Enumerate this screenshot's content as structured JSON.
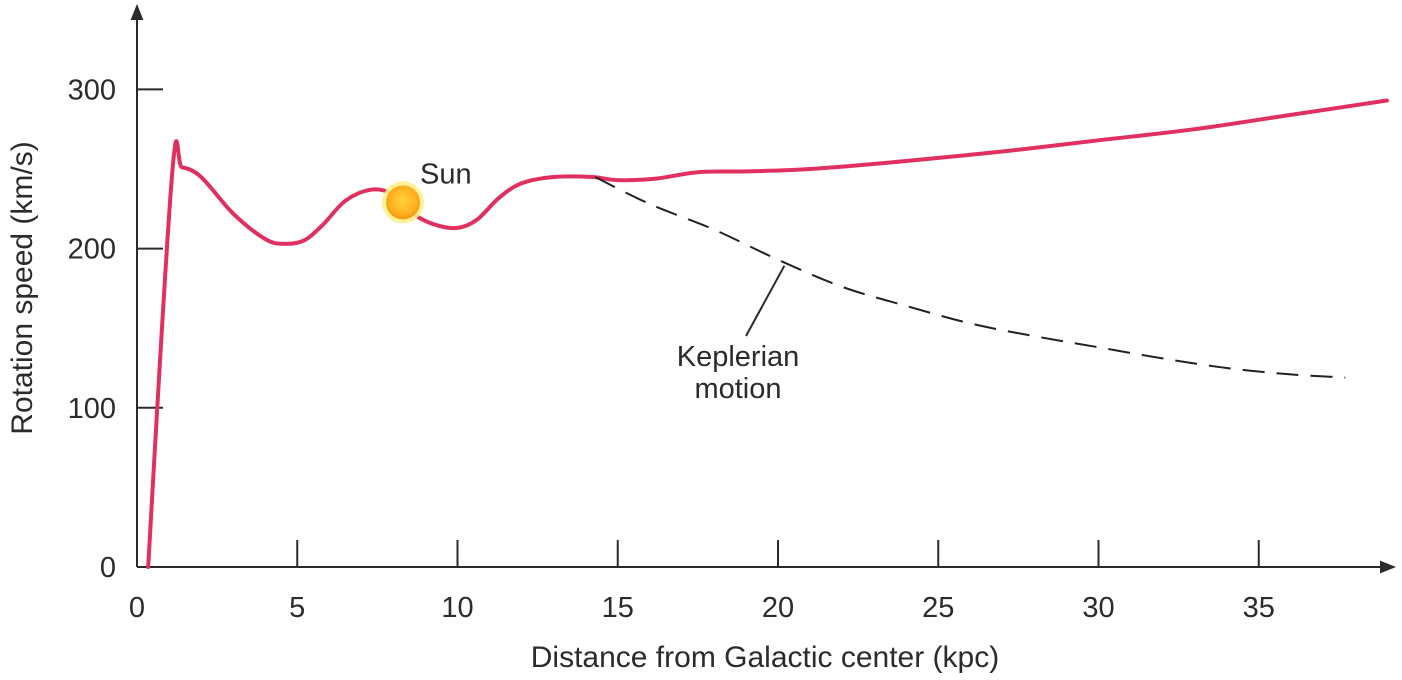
{
  "chart_data": {
    "type": "line",
    "xlabel": "Distance from Galactic center (kpc)",
    "ylabel": "Rotation speed (km/s)",
    "xlim": [
      0,
      39
    ],
    "ylim": [
      0,
      340
    ],
    "x_ticks": [
      0,
      5,
      10,
      15,
      20,
      25,
      30,
      35
    ],
    "y_ticks": [
      0,
      100,
      200,
      300
    ],
    "grid": false,
    "series": [
      {
        "style": "solid",
        "color": "#e03060",
        "points": [
          [
            0.35,
            0
          ],
          [
            1.1,
            248
          ],
          [
            1.4,
            251
          ],
          [
            2.0,
            245
          ],
          [
            3.0,
            222
          ],
          [
            4.0,
            206
          ],
          [
            4.6,
            203
          ],
          [
            5.2,
            205
          ],
          [
            5.8,
            215
          ],
          [
            6.5,
            230
          ],
          [
            7.3,
            237
          ],
          [
            8.0,
            234
          ],
          [
            8.6,
            222
          ],
          [
            9.3,
            215
          ],
          [
            10.0,
            213
          ],
          [
            10.6,
            218
          ],
          [
            11.3,
            232
          ],
          [
            12.0,
            241
          ],
          [
            13.0,
            245
          ],
          [
            14.2,
            245
          ],
          [
            15.0,
            243
          ],
          [
            16.2,
            244
          ],
          [
            17.5,
            248
          ],
          [
            19.0,
            248.5
          ],
          [
            21.0,
            250
          ],
          [
            24.0,
            255
          ],
          [
            27.0,
            261
          ],
          [
            30.0,
            268
          ],
          [
            33.0,
            275
          ],
          [
            36.0,
            284
          ],
          [
            39.0,
            293
          ]
        ]
      },
      {
        "style": "dashed",
        "color": "#222222",
        "points": [
          [
            14.3,
            245
          ],
          [
            16.0,
            228
          ],
          [
            18.0,
            212
          ],
          [
            20.0,
            193
          ],
          [
            22.0,
            176
          ],
          [
            24.0,
            164
          ],
          [
            26.0,
            153
          ],
          [
            28.0,
            145
          ],
          [
            30.0,
            138
          ],
          [
            32.0,
            131
          ],
          [
            34.0,
            125
          ],
          [
            36.0,
            121
          ],
          [
            37.7,
            119
          ]
        ]
      }
    ],
    "annotations": [
      {
        "text": "Sun",
        "x": 8.3,
        "y": 229,
        "marker": "sun"
      },
      {
        "text_lines": [
          "Keplerian",
          "motion"
        ],
        "points_to": {
          "x": 20.2,
          "y": 188
        }
      }
    ]
  },
  "colors": {
    "curve": "#e03060",
    "dashed": "#222222",
    "axis": "#2b2b2b",
    "sun_core": "#ffb020",
    "sun_glow": "#fff08a"
  }
}
